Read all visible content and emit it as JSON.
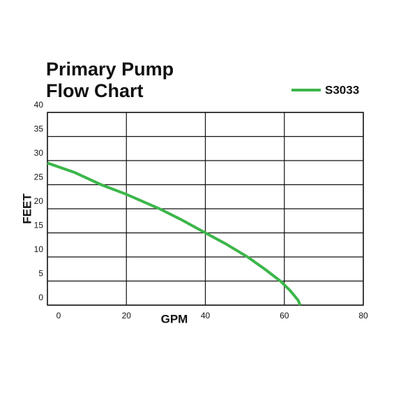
{
  "chart_data": {
    "type": "line",
    "title": [
      "Primary Pump",
      "Flow Chart"
    ],
    "x_label": "GPM",
    "y_label": "FEET",
    "series": [
      {
        "name": "S3033",
        "color": "#3cb64a",
        "x": [
          0,
          7,
          13.6,
          20,
          28.4,
          34,
          40,
          45,
          50.7,
          55,
          59,
          61.5,
          63.5,
          64
        ],
        "values": [
          29.5,
          27.5,
          25,
          23,
          20,
          17.7,
          15,
          12.8,
          10,
          7.5,
          5,
          3,
          1,
          0
        ]
      }
    ],
    "xlim": [
      0,
      80
    ],
    "ylim": [
      0,
      40
    ],
    "xticks": [
      0,
      20,
      40,
      60,
      80
    ],
    "yticks": [
      0,
      5,
      10,
      15,
      20,
      25,
      30,
      35,
      40
    ],
    "grid": true,
    "legend": "top-right"
  }
}
